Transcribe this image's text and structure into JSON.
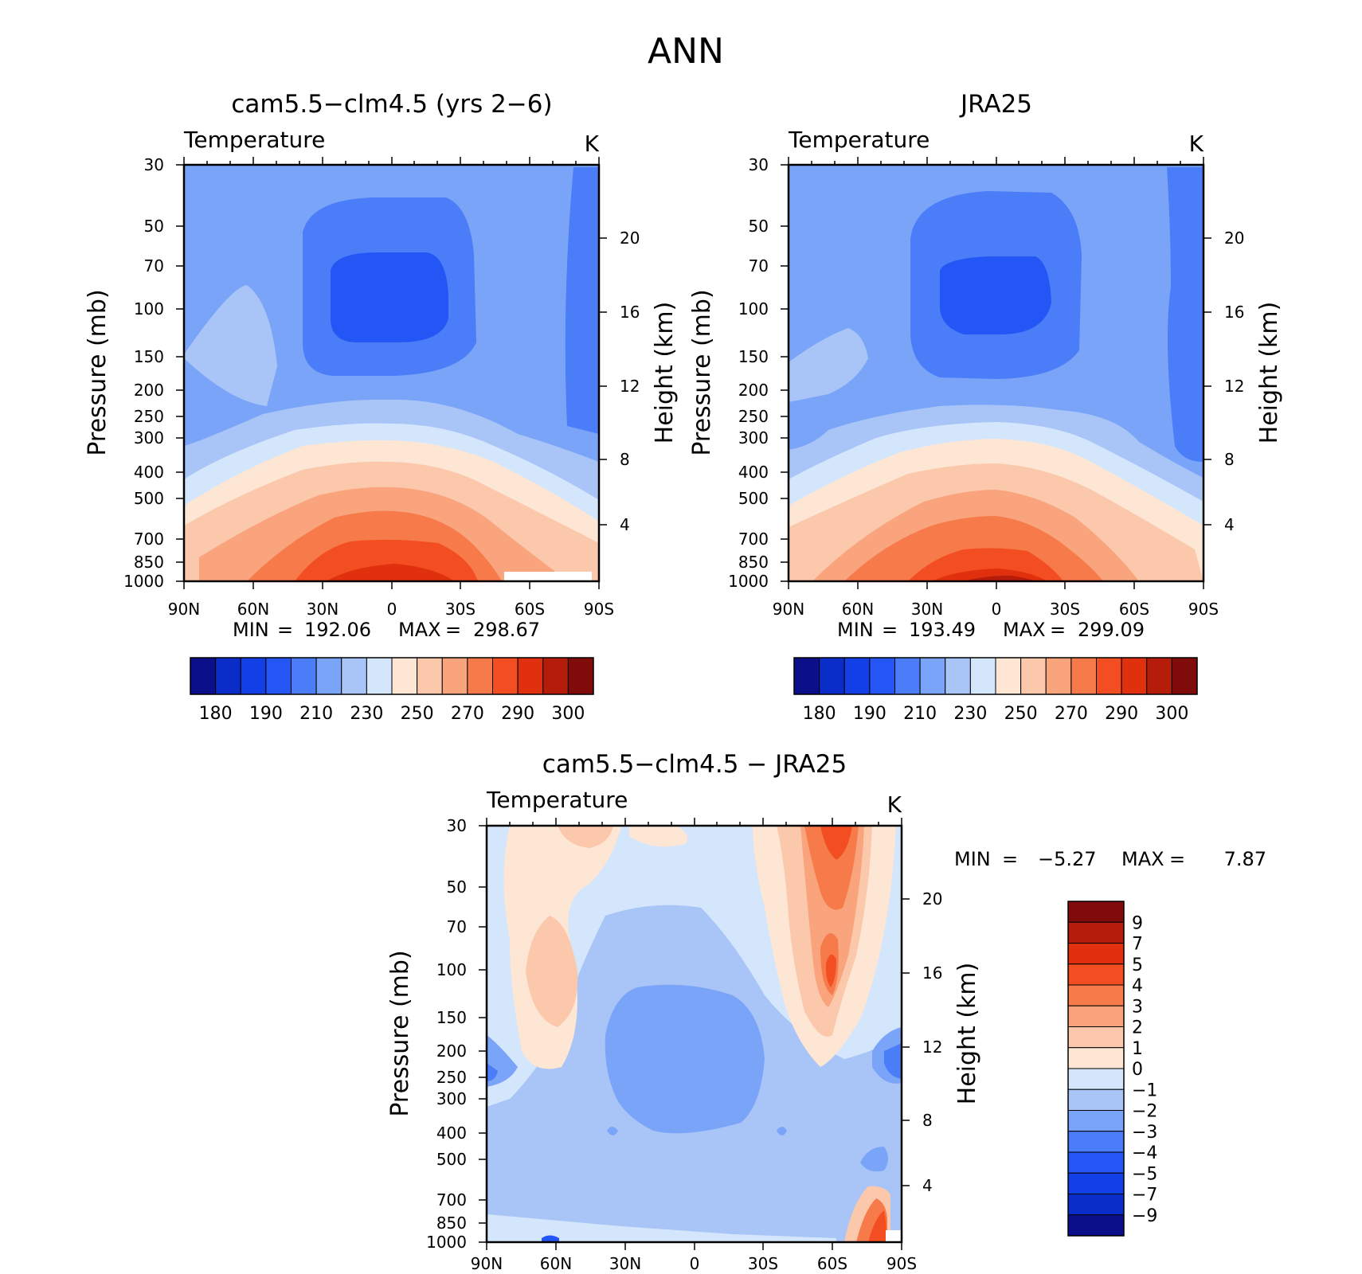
{
  "figure": {
    "title": "ANN"
  },
  "chart_data": [
    {
      "type": "heatmap",
      "title": "cam5.5−clm4.5 (yrs 2−6)",
      "subtitle": "Temperature",
      "units": "K",
      "xlabel": "",
      "ylabel": "Pressure (mb)",
      "y2label": "Height (km)",
      "xticks": [
        "90N",
        "60N",
        "30N",
        "0",
        "30S",
        "60S",
        "90S"
      ],
      "yticks": [
        30,
        50,
        70,
        100,
        150,
        200,
        250,
        300,
        400,
        500,
        700,
        850,
        1000
      ],
      "y2ticks": [
        4,
        8,
        12,
        16,
        20
      ],
      "xlim": [
        90,
        -90
      ],
      "ylim": [
        1000,
        30
      ],
      "stats": {
        "min_label": "MIN",
        "min": "192.06",
        "max_label": "MAX",
        "max": "298.67"
      },
      "colorbar": {
        "orientation": "horizontal",
        "levels": [
          180,
          190,
          210,
          230,
          250,
          270,
          290,
          300
        ],
        "colors": [
          "#0b0f8a",
          "#0a2cc8",
          "#1340e6",
          "#2356f5",
          "#4a7df7",
          "#7aa4f7",
          "#a9c5f8",
          "#d4e6fb",
          "#fde6d4",
          "#fbc8ac",
          "#f9a47c",
          "#f67a4a",
          "#f24e22",
          "#e0300e",
          "#b51c0a",
          "#7f0b0b"
        ],
        "labels": [
          "180",
          "190",
          "210",
          "230",
          "250",
          "270",
          "290",
          "300"
        ]
      },
      "field": "zonal-mean temperature; cold tropical tropopause minimum (~192 K near 0, 100 mb), warm tropical surface maximum (~299 K at 1000 mb)"
    },
    {
      "type": "heatmap",
      "title": "JRA25",
      "subtitle": "Temperature",
      "units": "K",
      "xlabel": "",
      "ylabel": "Pressure (mb)",
      "y2label": "Height (km)",
      "xticks": [
        "90N",
        "60N",
        "30N",
        "0",
        "30S",
        "60S",
        "90S"
      ],
      "yticks": [
        30,
        50,
        70,
        100,
        150,
        200,
        250,
        300,
        400,
        500,
        700,
        850,
        1000
      ],
      "y2ticks": [
        4,
        8,
        12,
        16,
        20
      ],
      "xlim": [
        90,
        -90
      ],
      "ylim": [
        1000,
        30
      ],
      "stats": {
        "min_label": "MIN",
        "min": "193.49",
        "max_label": "MAX",
        "max": "299.09"
      },
      "colorbar": {
        "orientation": "horizontal",
        "levels": [
          180,
          190,
          210,
          230,
          250,
          270,
          290,
          300
        ],
        "colors": [
          "#0b0f8a",
          "#0a2cc8",
          "#1340e6",
          "#2356f5",
          "#4a7df7",
          "#7aa4f7",
          "#a9c5f8",
          "#d4e6fb",
          "#fde6d4",
          "#fbc8ac",
          "#f9a47c",
          "#f67a4a",
          "#f24e22",
          "#e0300e",
          "#b51c0a",
          "#7f0b0b"
        ],
        "labels": [
          "180",
          "190",
          "210",
          "230",
          "250",
          "270",
          "290",
          "300"
        ]
      },
      "field": "zonal-mean temperature reanalysis; similar structure to model"
    },
    {
      "type": "heatmap",
      "title": "cam5.5−clm4.5 − JRA25",
      "subtitle": "Temperature",
      "units": "K",
      "xlabel": "",
      "ylabel": "Pressure (mb)",
      "y2label": "Height (km)",
      "xticks": [
        "90N",
        "60N",
        "30N",
        "0",
        "30S",
        "60S",
        "90S"
      ],
      "yticks": [
        30,
        50,
        70,
        100,
        150,
        200,
        250,
        300,
        400,
        500,
        700,
        850,
        1000
      ],
      "y2ticks": [
        4,
        8,
        12,
        16,
        20
      ],
      "xlim": [
        90,
        -90
      ],
      "ylim": [
        1000,
        30
      ],
      "stats": {
        "min_label": "MIN",
        "eq": "=",
        "min": "−5.27",
        "max_label": "MAX",
        "max": "7.87"
      },
      "colorbar": {
        "orientation": "vertical",
        "levels": [
          9,
          7,
          5,
          4,
          3,
          2,
          1,
          0,
          -1,
          -2,
          -3,
          -4,
          -5,
          -7,
          -9
        ],
        "colors": [
          "#7f0b0b",
          "#b51c0a",
          "#e0300e",
          "#f24e22",
          "#f67a4a",
          "#f9a47c",
          "#fbc8ac",
          "#fde6d4",
          "#d4e6fb",
          "#a9c5f8",
          "#7aa4f7",
          "#4a7df7",
          "#2356f5",
          "#1340e6",
          "#0a2cc8",
          "#0b0f8a"
        ],
        "labels": [
          "9",
          "7",
          "5",
          "4",
          "3",
          "2",
          "1",
          "0",
          "−1",
          "−2",
          "−3",
          "−4",
          "−5",
          "−7",
          "−9"
        ]
      },
      "field": "model minus reanalysis difference; warm bias near 60S upper levels (up to ~7.9 K), cold bias broadly in tropical troposphere (~-2 to -3 K)"
    }
  ]
}
